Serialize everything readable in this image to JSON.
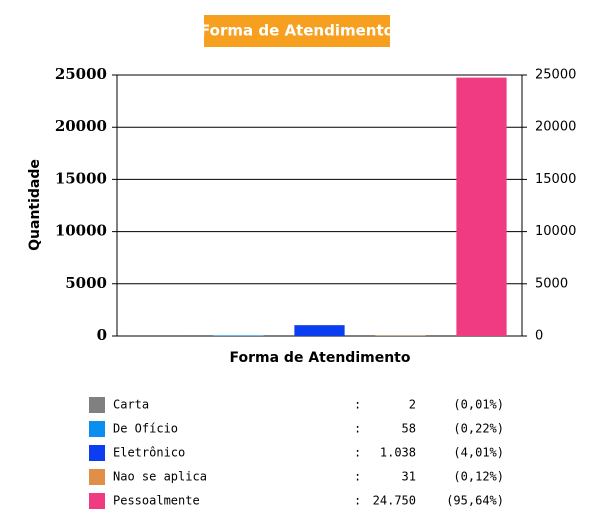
{
  "chart_data": {
    "type": "bar",
    "title": "Forma de Atendimento",
    "x_label": "Forma de Atendimento",
    "y_label": "Quantidade",
    "categories": [
      "Carta",
      "De Ofício",
      "Eletrônico",
      "Nao se aplica",
      "Pessoalmente"
    ],
    "values": [
      2,
      58,
      1038,
      31,
      24750
    ],
    "value_labels": [
      "2",
      "58",
      "1.038",
      "31",
      "24.750"
    ],
    "percents": [
      0.01,
      0.22,
      4.01,
      0.12,
      95.64
    ],
    "percent_labels": [
      "(0,01%)",
      "(0,22%)",
      "(4,01%)",
      "(0,12%)",
      "(95,64%)"
    ],
    "colors": [
      "#808080",
      "#0a8ef0",
      "#0a3ef0",
      "#e08f48",
      "#f03a82"
    ],
    "legend_separator": ":",
    "ylim": [
      0,
      25000
    ],
    "yticks": [
      0,
      5000,
      10000,
      15000,
      20000,
      25000
    ],
    "y2lim": [
      0,
      25000
    ],
    "y2ticks": [
      0,
      5000,
      10000,
      15000,
      20000,
      25000
    ],
    "grid": true
  }
}
